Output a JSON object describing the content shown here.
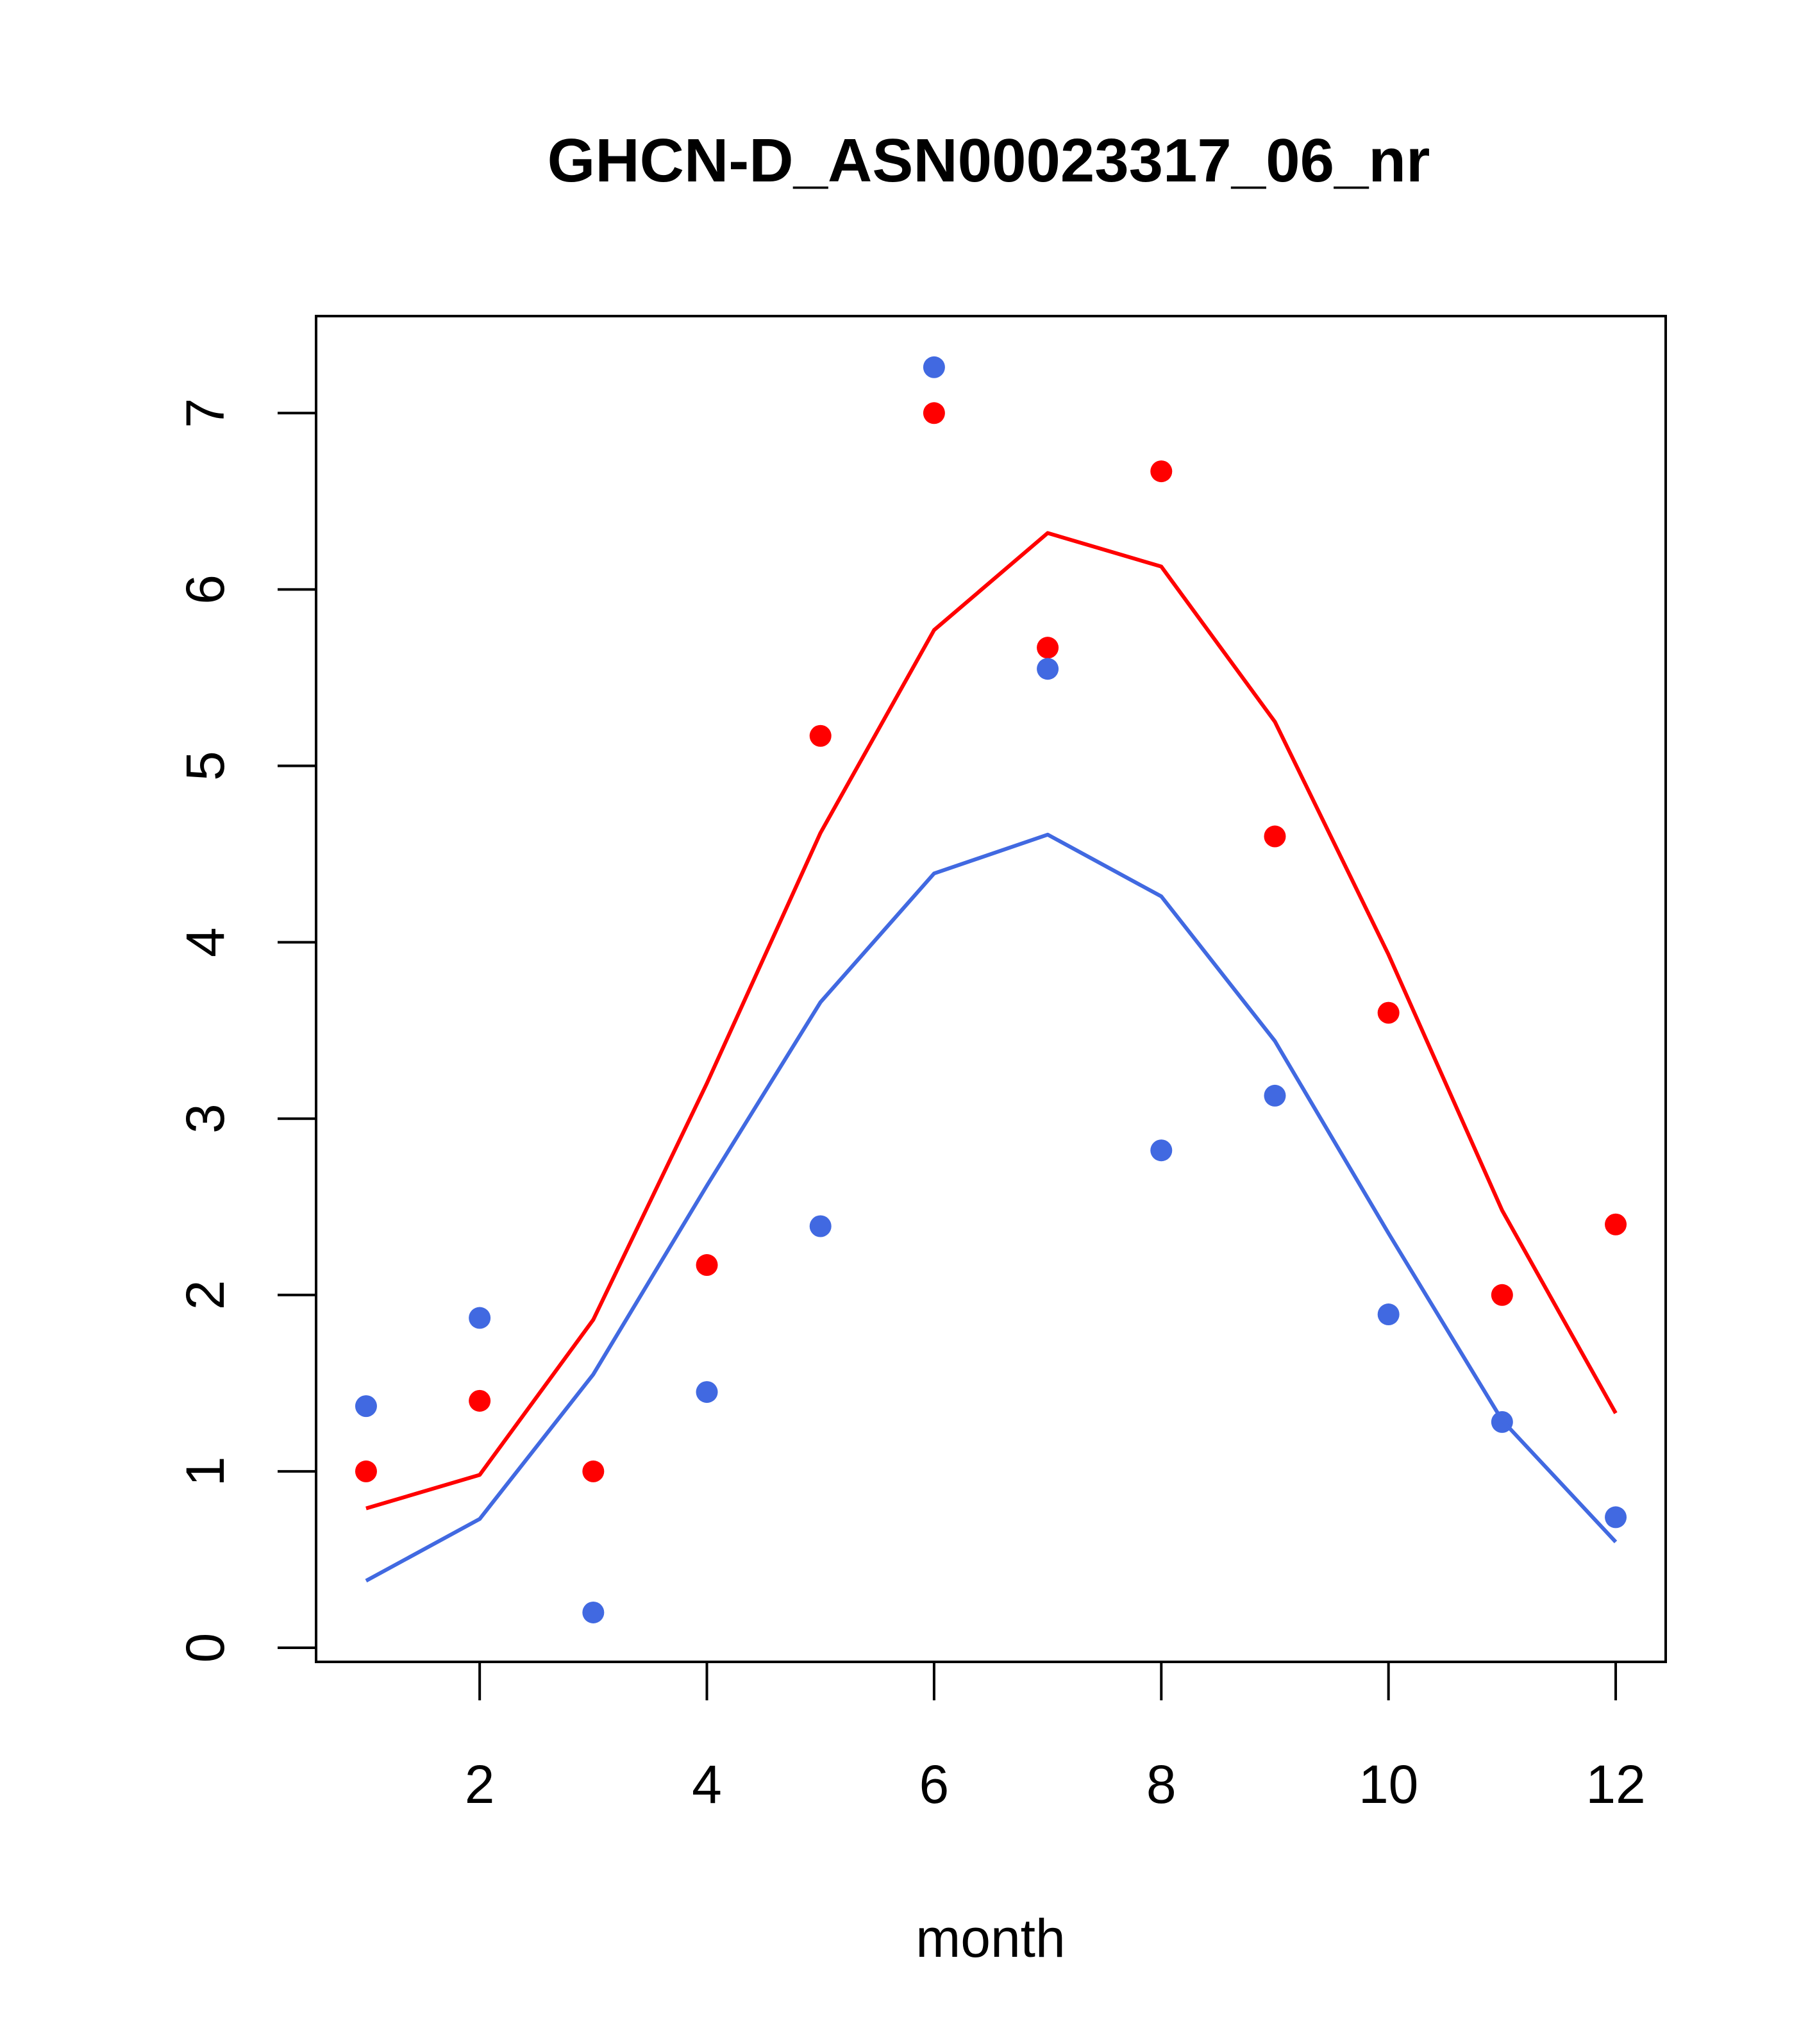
{
  "chart_data": {
    "type": "scatter",
    "title": "GHCN-D_ASN00023317_06_nr",
    "xlabel": "month",
    "ylabel": "",
    "xlim": [
      0.56,
      12.44
    ],
    "ylim": [
      -0.08,
      7.55
    ],
    "x_ticks": [
      2,
      4,
      6,
      8,
      10,
      12
    ],
    "y_ticks": [
      0,
      1,
      2,
      3,
      4,
      5,
      6,
      7
    ],
    "grid": false,
    "series": [
      {
        "kind": "points",
        "color": "#ff0000",
        "x": [
          1,
          2,
          3,
          4,
          5,
          6,
          7,
          8,
          9,
          10,
          11,
          12
        ],
        "values": [
          1.0,
          1.4,
          1.0,
          2.17,
          5.17,
          7.0,
          5.67,
          6.67,
          4.6,
          3.6,
          2.0,
          2.4
        ]
      },
      {
        "kind": "points",
        "color": "#4169e1",
        "x": [
          1,
          2,
          3,
          4,
          5,
          6,
          7,
          8,
          9,
          10,
          11,
          12
        ],
        "values": [
          1.37,
          1.87,
          0.2,
          1.45,
          2.39,
          7.26,
          5.55,
          2.82,
          3.13,
          1.89,
          1.28,
          0.74
        ]
      },
      {
        "kind": "line",
        "color": "#ff0000",
        "x": [
          1,
          2,
          3,
          4,
          5,
          6,
          7,
          8,
          9,
          10,
          11,
          12
        ],
        "values": [
          0.79,
          0.98,
          1.86,
          3.2,
          4.62,
          5.77,
          6.32,
          6.13,
          5.25,
          3.93,
          2.48,
          1.33
        ]
      },
      {
        "kind": "line",
        "color": "#4169e1",
        "x": [
          1,
          2,
          3,
          4,
          5,
          6,
          7,
          8,
          9,
          10,
          11,
          12
        ],
        "values": [
          0.38,
          0.73,
          1.55,
          2.62,
          3.66,
          4.39,
          4.61,
          4.26,
          3.44,
          2.35,
          1.29,
          0.6
        ]
      }
    ]
  }
}
